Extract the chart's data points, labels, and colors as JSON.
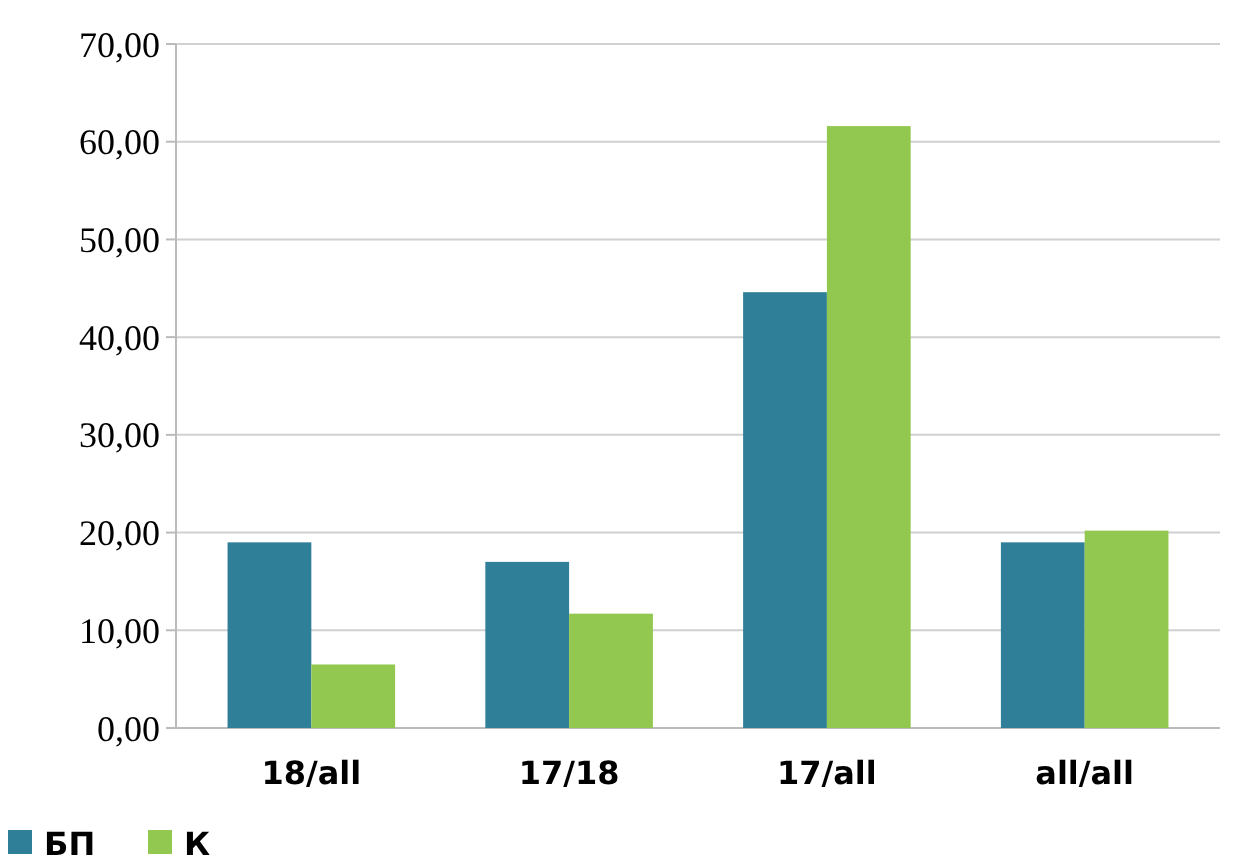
{
  "chart_data": {
    "type": "bar",
    "categories": [
      "18/all",
      "17/18",
      "17/all",
      "all/all"
    ],
    "series": [
      {
        "name": "БП",
        "color": "#2f7f99",
        "values": [
          19.0,
          17.0,
          44.6,
          19.0
        ]
      },
      {
        "name": "К",
        "color": "#92c750",
        "values": [
          6.5,
          11.7,
          61.6,
          20.2
        ]
      }
    ],
    "ylim": [
      0,
      70
    ],
    "yticks": [
      {
        "value": 0,
        "label": "0,00"
      },
      {
        "value": 10,
        "label": "10,00"
      },
      {
        "value": 20,
        "label": "20,00"
      },
      {
        "value": 30,
        "label": "30,00"
      },
      {
        "value": 40,
        "label": "40,00"
      },
      {
        "value": 50,
        "label": "50,00"
      },
      {
        "value": 60,
        "label": "60,00"
      },
      {
        "value": 70,
        "label": "70,00"
      }
    ],
    "grid": "y",
    "legend": "bottom left"
  }
}
